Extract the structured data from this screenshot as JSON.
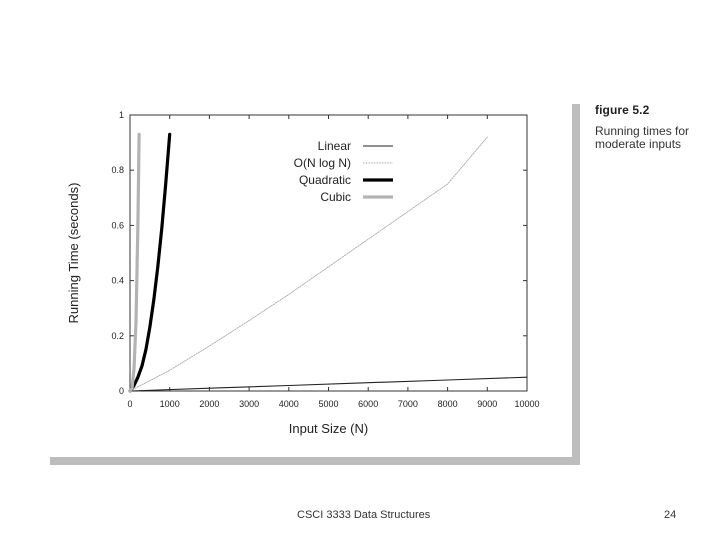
{
  "figure": {
    "label": "figure 5.2",
    "caption": "Running times for moderate inputs"
  },
  "footer": {
    "text": "CSCI 3333 Data Structures",
    "page": "24"
  },
  "chart_data": {
    "type": "line",
    "title": "",
    "xlabel": "Input Size (N)",
    "ylabel": "Running Time (seconds)",
    "xlim": [
      0,
      10000
    ],
    "ylim": [
      0,
      1
    ],
    "x_ticks": [
      0,
      1000,
      2000,
      3000,
      4000,
      5000,
      6000,
      7000,
      8000,
      9000,
      10000
    ],
    "y_ticks": [
      0,
      0.2,
      0.4,
      0.6,
      0.8,
      1
    ],
    "x_tick_labels": [
      "0",
      "1000",
      "2000",
      "3000",
      "4000",
      "5000",
      "6000",
      "7000",
      "8000",
      "9000",
      "10000"
    ],
    "y_tick_labels": [
      "0",
      "0.2",
      "0.4",
      "0.6",
      "0.8",
      "1"
    ],
    "legend_position": "top-right",
    "grid": false,
    "series": [
      {
        "name": "Linear",
        "kind": "linear",
        "color": "#222222",
        "style": "thin",
        "x": [
          0,
          2000,
          4000,
          6000,
          8000,
          10000
        ],
        "values": [
          0,
          0.01,
          0.02,
          0.03,
          0.04,
          0.05
        ]
      },
      {
        "name": "O(N log N)",
        "kind": "nlogn",
        "color": "#aaaaaa",
        "style": "dotted",
        "x": [
          0,
          1000,
          2000,
          3000,
          4000,
          5000,
          6000,
          7000,
          8000,
          9000
        ],
        "values": [
          0,
          0.075,
          0.163,
          0.255,
          0.35,
          0.45,
          0.55,
          0.65,
          0.75,
          0.92
        ]
      },
      {
        "name": "Quadratic",
        "kind": "quadratic",
        "color": "#000000",
        "style": "thick",
        "x": [
          0,
          100,
          200,
          300,
          400,
          500,
          600,
          700,
          800,
          900,
          1000
        ],
        "values": [
          0,
          0.02,
          0.05,
          0.09,
          0.15,
          0.23,
          0.33,
          0.45,
          0.59,
          0.75,
          0.93
        ]
      },
      {
        "name": "Cubic",
        "kind": "cubic",
        "color": "#b3b3b3",
        "style": "thick",
        "x": [
          0,
          50,
          100,
          150,
          200,
          230
        ],
        "values": [
          0,
          0.01,
          0.08,
          0.25,
          0.6,
          0.93
        ]
      }
    ]
  }
}
